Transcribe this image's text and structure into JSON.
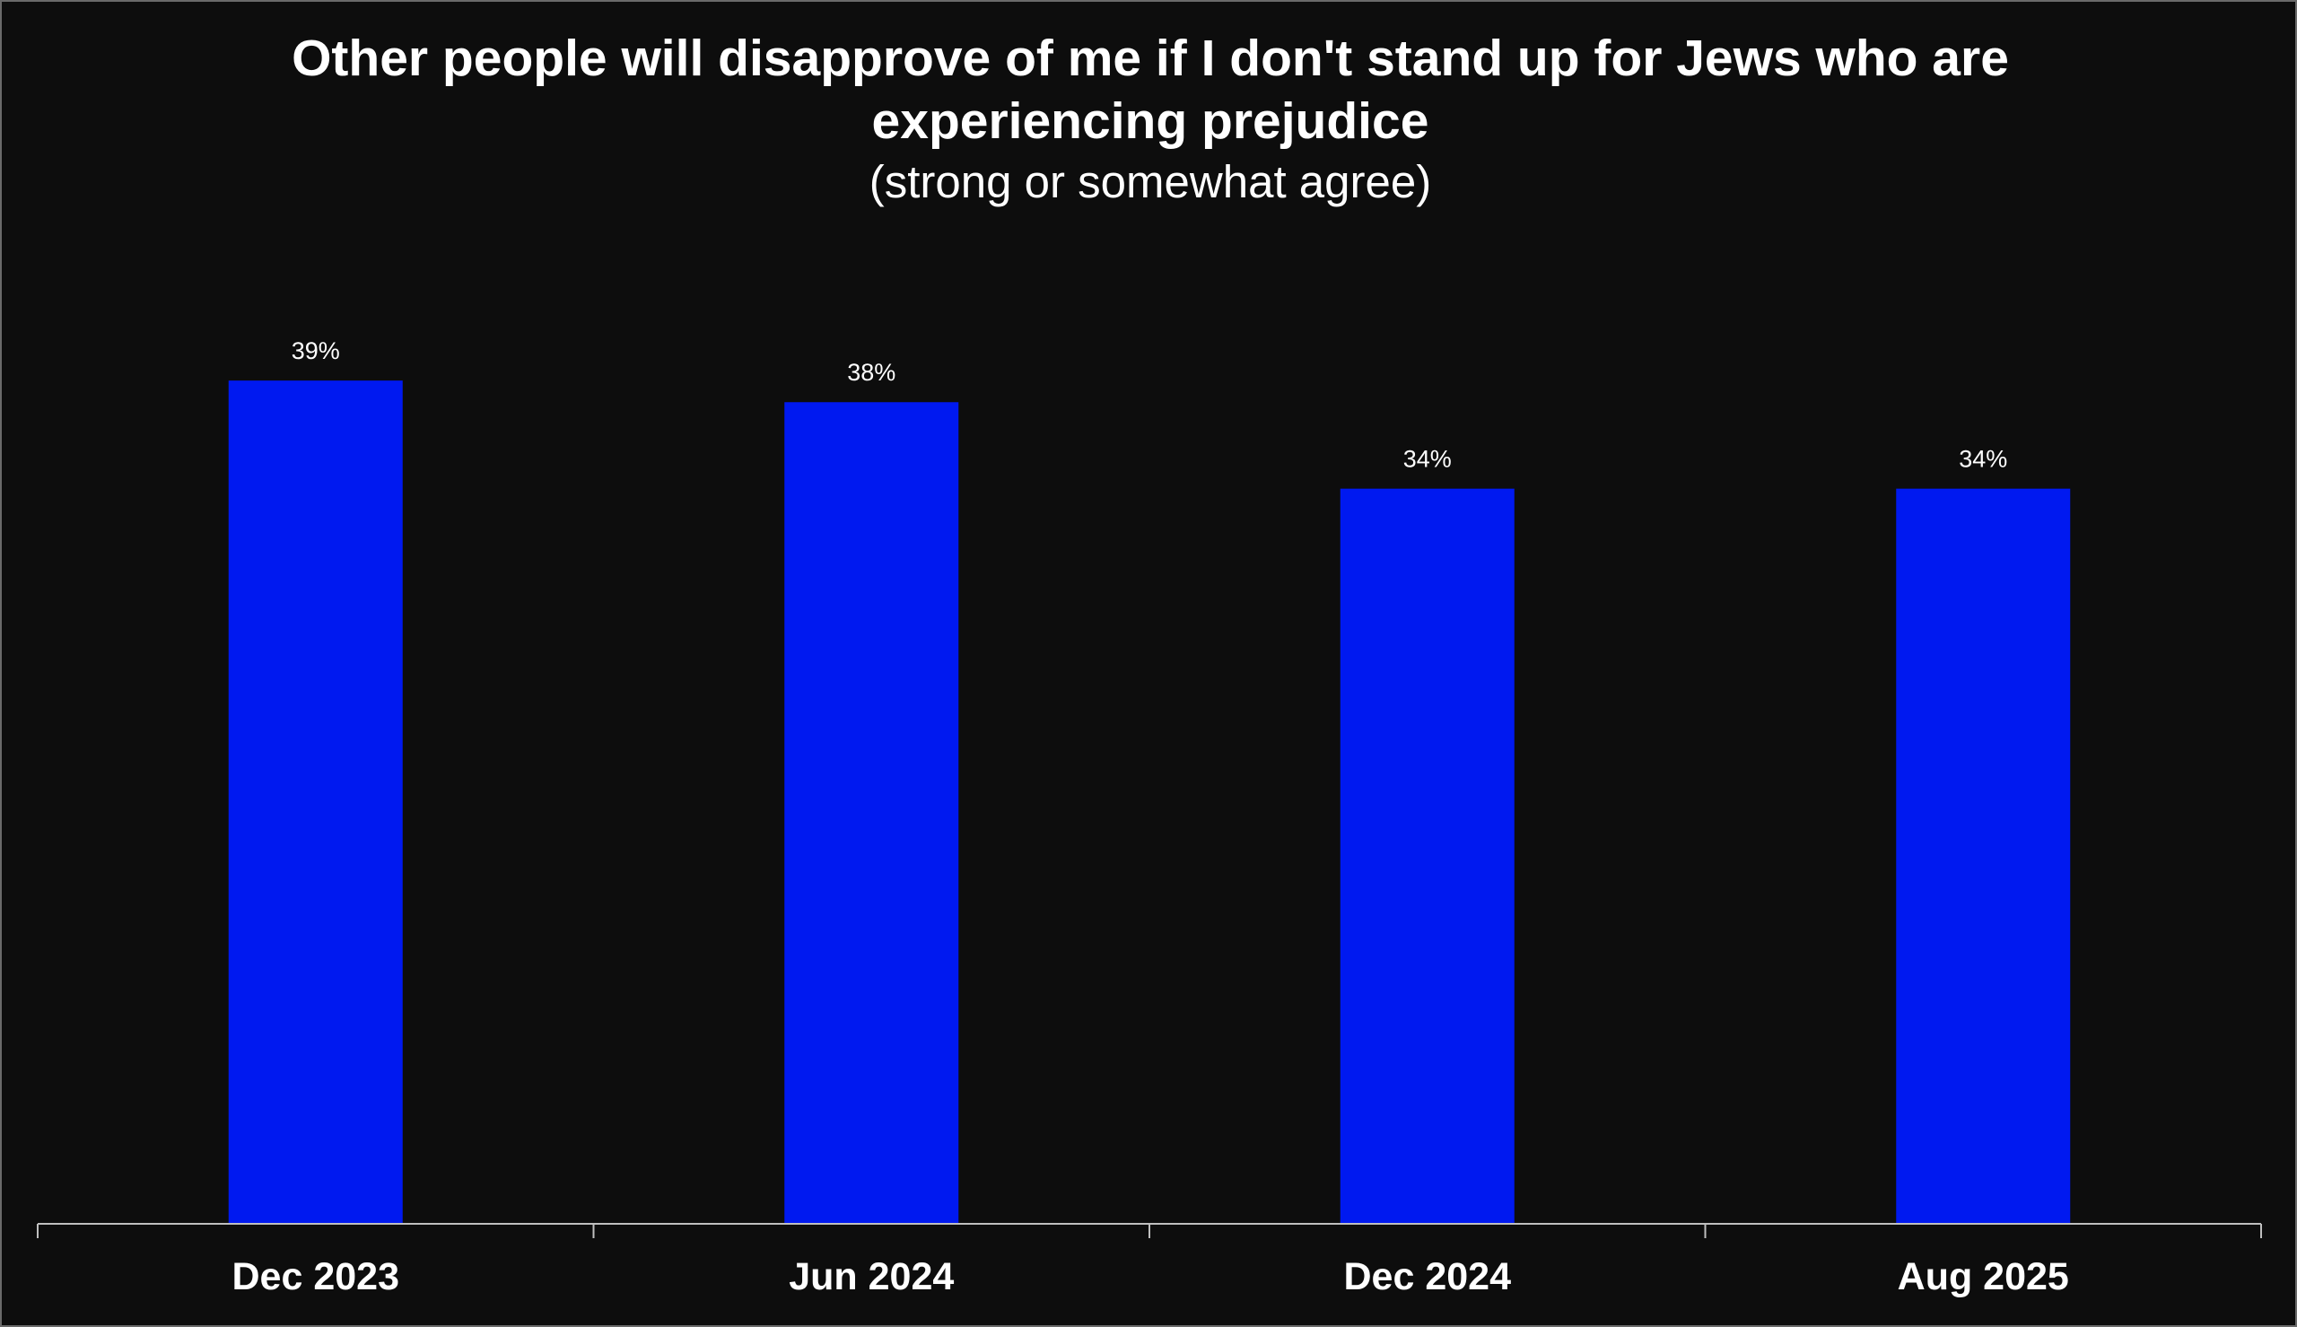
{
  "chart_data": {
    "type": "bar",
    "title": "Other people will disapprove of me if I don't stand up for Jews who are experiencing prejudice",
    "subtitle": "(strong or somewhat agree)",
    "categories": [
      "Dec 2023",
      "Jun 2024",
      "Dec 2024",
      "Aug 2025"
    ],
    "values": [
      39,
      38,
      34,
      34
    ],
    "value_labels": [
      "39%",
      "38%",
      "34%",
      "34%"
    ],
    "xlabel": "",
    "ylabel": "",
    "ylim": [
      0,
      40.5
    ],
    "grid": false,
    "legend": "none",
    "colors": {
      "bar": "#0019f0",
      "background": "#0d0d0d",
      "axis": "#bfbfbf",
      "text": "#ffffff"
    }
  }
}
